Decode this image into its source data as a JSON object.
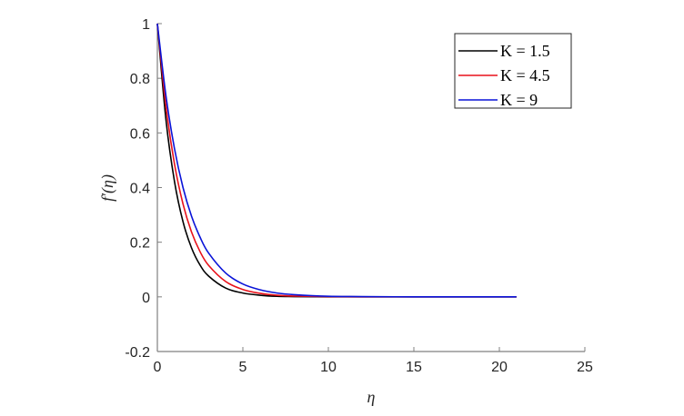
{
  "chart_data": {
    "type": "line",
    "title": "",
    "xlabel": "η",
    "ylabel": "f′(η)",
    "xlim": [
      0,
      25
    ],
    "ylim": [
      -0.2,
      1
    ],
    "xticks": [
      "0",
      "5",
      "10",
      "15",
      "20",
      "25"
    ],
    "yticks": [
      "-0.2",
      "0",
      "0.2",
      "0.4",
      "0.6",
      "0.8",
      "1"
    ],
    "grid": false,
    "legend_position": "top-right",
    "x": [
      0,
      0.5,
      1,
      1.5,
      2,
      2.5,
      3,
      4,
      5,
      6,
      7,
      8,
      10,
      12,
      15,
      18,
      21
    ],
    "series": [
      {
        "name": "K = 1.5",
        "color": "#000000",
        "values": [
          1,
          0.65,
          0.423,
          0.275,
          0.179,
          0.116,
          0.076,
          0.032,
          0.014,
          0.006,
          0.002,
          0.001,
          0,
          0,
          0,
          0,
          0
        ]
      },
      {
        "name": "K = 4.5",
        "color": "#e8111a",
        "values": [
          1,
          0.698,
          0.487,
          0.34,
          0.237,
          0.165,
          0.115,
          0.056,
          0.027,
          0.013,
          0.006,
          0.003,
          0.001,
          0,
          0,
          0,
          0
        ]
      },
      {
        "name": "K = 9",
        "color": "#0a14d8",
        "values": [
          1,
          0.737,
          0.543,
          0.4,
          0.295,
          0.218,
          0.16,
          0.087,
          0.047,
          0.026,
          0.014,
          0.008,
          0.002,
          0.001,
          0,
          0,
          0
        ]
      }
    ]
  }
}
